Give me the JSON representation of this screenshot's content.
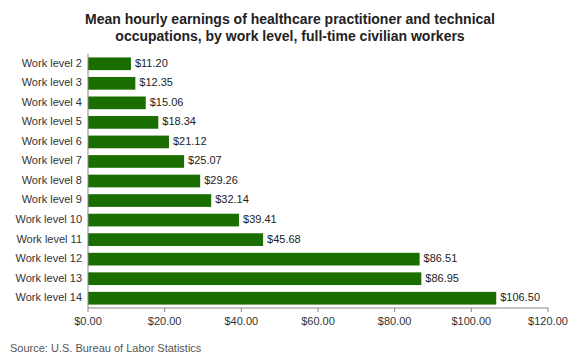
{
  "chart_data": {
    "type": "bar",
    "orientation": "horizontal",
    "title": "Mean hourly earnings of healthcare practitioner and technical\noccupations, by work level, full-time civilian workers",
    "categories": [
      "Work level 2",
      "Work level 3",
      "Work level 4",
      "Work level 5",
      "Work level 6",
      "Work level 7",
      "Work level 8",
      "Work level 9",
      "Work level 10",
      "Work level 11",
      "Work level 12",
      "Work level 13",
      "Work level 14"
    ],
    "values": [
      11.2,
      12.35,
      15.06,
      18.34,
      21.12,
      25.07,
      29.26,
      32.14,
      39.41,
      45.68,
      86.51,
      86.95,
      106.5
    ],
    "value_labels": [
      "$11.20",
      "$12.35",
      "$15.06",
      "$18.34",
      "$21.12",
      "$25.07",
      "$29.26",
      "$32.14",
      "$39.41",
      "$45.68",
      "$86.51",
      "$86.95",
      "$106.50"
    ],
    "data_labels": true,
    "color": "#1a6e00",
    "xlim": [
      0,
      120
    ],
    "xticks": [
      {
        "value": 0,
        "label": "$0.00"
      },
      {
        "value": 20,
        "label": "$20.00"
      },
      {
        "value": 40,
        "label": "$40.00"
      },
      {
        "value": 60,
        "label": "$60.00"
      },
      {
        "value": 80,
        "label": "$80.00"
      },
      {
        "value": 100,
        "label": "$100.00"
      },
      {
        "value": 120,
        "label": "$120.00"
      }
    ],
    "grid": false,
    "source": "Source: U.S. Bureau of Labor Statistics"
  }
}
